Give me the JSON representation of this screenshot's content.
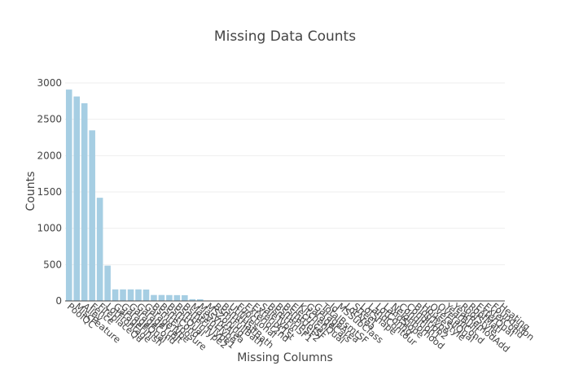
{
  "chart_data": {
    "type": "bar",
    "title": "Missing Data Counts",
    "xlabel": "Missing Columns",
    "ylabel": "Counts",
    "ylim": [
      0,
      3000
    ],
    "yticks": [
      0,
      500,
      1000,
      1500,
      2000,
      2500,
      3000
    ],
    "grid": true,
    "legend": "none",
    "bar_color": "#a6cee3",
    "categories": [
      "PoolQC",
      "MiscFeature",
      "Alley",
      "Fence",
      "FireplaceQu",
      "LotFrontage",
      "GarageFinish",
      "GarageQual",
      "GarageCond",
      "GarageYrBlt",
      "GarageType",
      "BsmtExposure",
      "BsmtCond",
      "BsmtQual",
      "BsmtFinType2",
      "BsmtFinType1",
      "MasVnrType",
      "MasVnrArea",
      "MSZoning",
      "BsmtFullBath",
      "BsmtHalfBath",
      "Utilities",
      "Functional",
      "Exterior2nd",
      "Exterior1st",
      "SaleType",
      "BsmtFinSF1",
      "BsmtFinSF2",
      "BsmtUnfSF",
      "Electrical",
      "KitchenQual",
      "GarageCars",
      "GarageArea",
      "TotalBsmtSF",
      "Id",
      "MSSubClass",
      "LotArea",
      "Street",
      "LotShape",
      "LandContour",
      "LotConfig",
      "LandSlope",
      "Neighborhood",
      "Condition1",
      "Condition2",
      "BldgType",
      "HouseStyle",
      "OverallQual",
      "OverallCond",
      "YearBuilt",
      "YearRemodAdd",
      "RoofStyle",
      "RoofMatl",
      "ExterQual",
      "ExterCond",
      "Foundation",
      "Heating"
    ],
    "values": [
      2909,
      2814,
      2721,
      2348,
      1420,
      486,
      159,
      159,
      159,
      159,
      157,
      82,
      82,
      81,
      80,
      79,
      24,
      23,
      4,
      2,
      2,
      2,
      2,
      1,
      1,
      1,
      1,
      1,
      1,
      1,
      1,
      1,
      1,
      1,
      0,
      0,
      0,
      0,
      0,
      0,
      0,
      0,
      0,
      0,
      0,
      0,
      0,
      0,
      0,
      0,
      0,
      0,
      0,
      0,
      0,
      0,
      0
    ]
  }
}
